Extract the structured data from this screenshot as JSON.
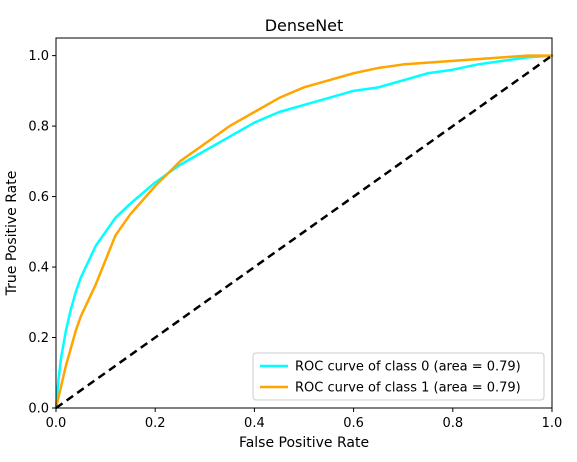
{
  "chart_data": {
    "type": "line",
    "title": "DenseNet",
    "xlabel": "False Positive Rate",
    "ylabel": "True Positive Rate",
    "xlim": [
      0.0,
      1.0
    ],
    "ylim": [
      0.0,
      1.05
    ],
    "xticks": [
      0.0,
      0.2,
      0.4,
      0.6,
      0.8,
      1.0
    ],
    "yticks": [
      0.0,
      0.2,
      0.4,
      0.6,
      0.8,
      1.0
    ],
    "xtick_labels": [
      "0.0",
      "0.2",
      "0.4",
      "0.6",
      "0.8",
      "1.0"
    ],
    "ytick_labels": [
      "0.0",
      "0.2",
      "0.4",
      "0.6",
      "0.8",
      "1.0"
    ],
    "grid": false,
    "legend_position": "lower-right",
    "series": [
      {
        "name": "ROC curve of class 0 (area = 0.79)",
        "color": "#00ffff",
        "x": [
          0.0,
          0.005,
          0.01,
          0.02,
          0.03,
          0.04,
          0.05,
          0.06,
          0.07,
          0.08,
          0.1,
          0.12,
          0.15,
          0.2,
          0.25,
          0.3,
          0.35,
          0.4,
          0.45,
          0.5,
          0.55,
          0.6,
          0.65,
          0.7,
          0.75,
          0.8,
          0.85,
          0.9,
          0.95,
          1.0
        ],
        "y": [
          0.0,
          0.08,
          0.14,
          0.22,
          0.28,
          0.33,
          0.37,
          0.4,
          0.43,
          0.46,
          0.5,
          0.54,
          0.58,
          0.64,
          0.69,
          0.73,
          0.77,
          0.81,
          0.84,
          0.86,
          0.88,
          0.9,
          0.91,
          0.93,
          0.95,
          0.96,
          0.975,
          0.985,
          0.995,
          1.0
        ]
      },
      {
        "name": "ROC curve of class 1 (area = 0.79)",
        "color": "#ffa500",
        "x": [
          0.0,
          0.005,
          0.01,
          0.02,
          0.03,
          0.04,
          0.05,
          0.06,
          0.08,
          0.1,
          0.12,
          0.15,
          0.2,
          0.25,
          0.3,
          0.35,
          0.4,
          0.45,
          0.5,
          0.55,
          0.6,
          0.65,
          0.7,
          0.75,
          0.8,
          0.85,
          0.9,
          0.95,
          1.0
        ],
        "y": [
          0.0,
          0.03,
          0.06,
          0.12,
          0.17,
          0.22,
          0.26,
          0.29,
          0.35,
          0.42,
          0.49,
          0.55,
          0.63,
          0.7,
          0.75,
          0.8,
          0.84,
          0.88,
          0.91,
          0.93,
          0.95,
          0.965,
          0.975,
          0.98,
          0.985,
          0.99,
          0.995,
          1.0,
          1.0
        ]
      }
    ],
    "reference_line": {
      "color": "#000000",
      "style": "dashed",
      "x": [
        0.0,
        1.0
      ],
      "y": [
        0.0,
        1.0
      ]
    }
  }
}
